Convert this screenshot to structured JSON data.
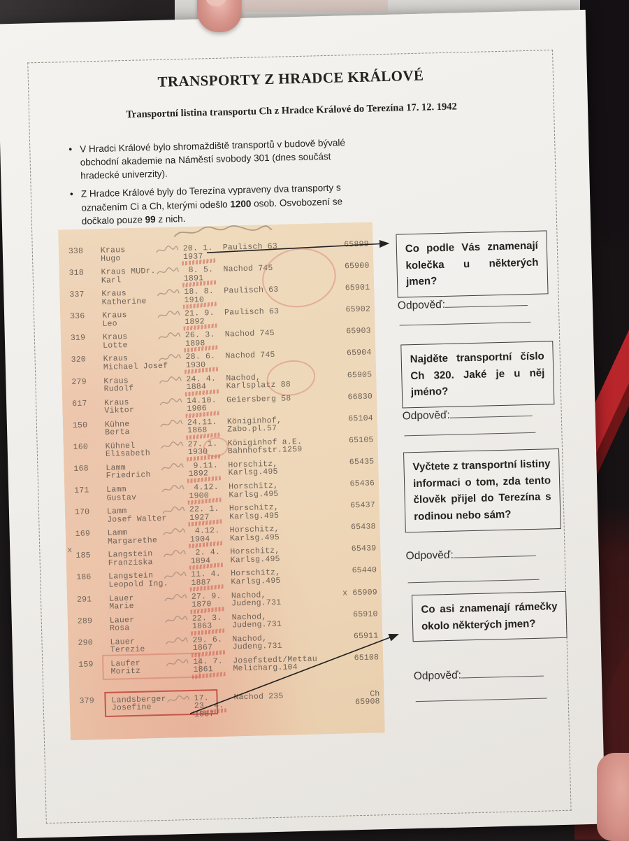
{
  "worksheet": {
    "title": "TRANSPORTY Z HRADCE KRÁLOVÉ",
    "subtitle": "Transportní listina transportu Ch z Hradce Králové do Terezína 17. 12. 1942",
    "bullets": [
      {
        "segments": [
          {
            "text": "V Hradci Králové bylo shromaždiště transportů v budově bývalé obchodní akademie na Náměstí svobody 301 (dnes součást hradecké univerzity).",
            "bold": false
          }
        ]
      },
      {
        "segments": [
          {
            "text": "Z Hradce Králové byly do Terezína vypraveny dva transporty s označením Ci a Ch, kterými odešlo ",
            "bold": false
          },
          {
            "text": "1200",
            "bold": true
          },
          {
            "text": " osob. Osvobození se dočkalo pouze ",
            "bold": false
          },
          {
            "text": "99",
            "bold": true
          },
          {
            "text": " z nich.",
            "bold": false
          }
        ]
      }
    ]
  },
  "scan": {
    "has_handwritten_header_note": true,
    "rows": [
      {
        "n": "338",
        "name1": "Kraus",
        "name2": "Hugo",
        "d1": "20. 1.",
        "d2": "1937",
        "p1": "Paulisch 63",
        "p2": "",
        "t": "65899"
      },
      {
        "n": "318",
        "name1": "Kraus MUDr.",
        "name2": "Karl",
        "d1": " 8. 5.",
        "d2": "1891",
        "p1": "Nachod 745",
        "p2": "",
        "t": "65900"
      },
      {
        "n": "337",
        "name1": "Kraus",
        "name2": "Katherine",
        "d1": "18. 8.",
        "d2": "1910",
        "p1": "Paulisch 63",
        "p2": "",
        "t": "65901"
      },
      {
        "n": "336",
        "name1": "Kraus",
        "name2": "Leo",
        "d1": "21. 9.",
        "d2": "1892",
        "p1": "Paulisch 63",
        "p2": "",
        "t": "65902"
      },
      {
        "n": "319",
        "name1": "Kraus",
        "name2": "Lotte",
        "d1": "26. 3.",
        "d2": "1898",
        "p1": "Nachod 745",
        "p2": "",
        "t": "65903"
      },
      {
        "n": "320",
        "name1": "Kraus",
        "name2": "Michael Josef",
        "d1": "28. 6.",
        "d2": "1930",
        "p1": "Nachod 745",
        "p2": "",
        "t": "65904"
      },
      {
        "n": "279",
        "name1": "Kraus",
        "name2": "Rudolf",
        "d1": "24. 4.",
        "d2": "1884",
        "p1": "Nachod,",
        "p2": "Karlsplatz 88",
        "t": "65905"
      },
      {
        "n": "617",
        "name1": "Kraus",
        "name2": "Viktor",
        "d1": "14.10.",
        "d2": "1906",
        "p1": "Geiersberg 58",
        "p2": "",
        "t": "66830"
      },
      {
        "n": "150",
        "name1": "Kühne",
        "name2": "Berta",
        "d1": "24.11.",
        "d2": "1868",
        "p1": "Königinhof,",
        "p2": "Zabo.pl.57",
        "t": "65104"
      },
      {
        "n": "160",
        "name1": "Kühnel",
        "name2": "Elisabeth",
        "d1": "27. 1.",
        "d2": "1930",
        "p1": "Königinhof a.E.",
        "p2": "Bahnhofstr.1259",
        "t": "65105"
      },
      {
        "n": "168",
        "name1": "Lamm",
        "name2": "Friedrich",
        "d1": " 9.11.",
        "d2": "1892",
        "p1": "Horschitz,",
        "p2": "Karlsg.495",
        "t": "65435"
      },
      {
        "n": "171",
        "name1": "Lamm",
        "name2": "Gustav",
        "d1": " 4.12.",
        "d2": "1900",
        "p1": "Horschitz,",
        "p2": "Karlsg.495",
        "t": "65436"
      },
      {
        "n": "170",
        "name1": "Lamm",
        "name2": "Josef Walter",
        "d1": "22. 1.",
        "d2": "1927",
        "p1": "Horschitz,",
        "p2": "Karlsg.495",
        "t": "65437"
      },
      {
        "n": "169",
        "name1": "Lamm",
        "name2": "Margarethe",
        "d1": " 4.12.",
        "d2": "1904",
        "p1": "Horschitz,",
        "p2": "Karlsg.495",
        "t": "65438"
      },
      {
        "n": "185",
        "name1": "Langstein",
        "name2": "Franziska",
        "d1": " 2. 4.",
        "d2": "1894",
        "p1": "Horschitz,",
        "p2": "Karlsg.495",
        "t": "65439",
        "xLeft": "x"
      },
      {
        "n": "186",
        "name1": "Langstein",
        "name2": "Leopold Ing.",
        "d1": "11. 4.",
        "d2": "1887",
        "p1": "Horschitz,",
        "p2": "Karlsg.495",
        "t": "65440"
      },
      {
        "n": "291",
        "name1": "Lauer",
        "name2": "Marie",
        "d1": "27. 9.",
        "d2": "1870",
        "p1": "Nachod,",
        "p2": "Judeng.731",
        "t": "65909",
        "tPrefix": "x "
      },
      {
        "n": "289",
        "name1": "Lauer",
        "name2": "Rosa",
        "d1": "22. 3.",
        "d2": "1863",
        "p1": "Nachod,",
        "p2": "Judeng.731",
        "t": "65910"
      },
      {
        "n": "290",
        "name1": "Lauer",
        "name2": "Terezie",
        "d1": "29. 6.",
        "d2": "1867",
        "p1": "Nachod,",
        "p2": "Judeng.731",
        "t": "65911"
      },
      {
        "n": "159",
        "name1": "Laufer",
        "name2": "Moritz",
        "d1": "14. 7.",
        "d2": "1861",
        "p1": "Josefstedt/Mettau",
        "p2": "Melicharg.104",
        "t": "65108",
        "faintBox": true
      },
      {
        "n": "379",
        "name1": "Landsberger",
        "name2": "Josefine",
        "d0": "17.",
        "d1": "23. 4.",
        "d2": "1867",
        "p1": "Nachod 235",
        "p2": "",
        "t0": "Ch",
        "t": "65908",
        "redBox": true,
        "gap": 21
      }
    ]
  },
  "questions": {
    "answer_label": "Odpověď:",
    "items": [
      {
        "text": "Co podle Vás znamenají kolečka u některých jmen?"
      },
      {
        "text": "Najděte transportní číslo Ch 320. Jaké je u něj jméno?"
      },
      {
        "text": "Vyčtete z transportní listiny informaci o tom, zda tento člověk přijel do Terezína s rodinou nebo sám?"
      },
      {
        "text": "Co asi znamenají rámečky okolo některých jmen?"
      }
    ]
  },
  "colors": {
    "paper": "#f2f0ec",
    "scan_paper": "#eed7b8",
    "red_annotation": "#ba342c",
    "question_box_border": "#3e3e3e",
    "background": "#1d191b",
    "stripe_red": "#b8252a"
  }
}
